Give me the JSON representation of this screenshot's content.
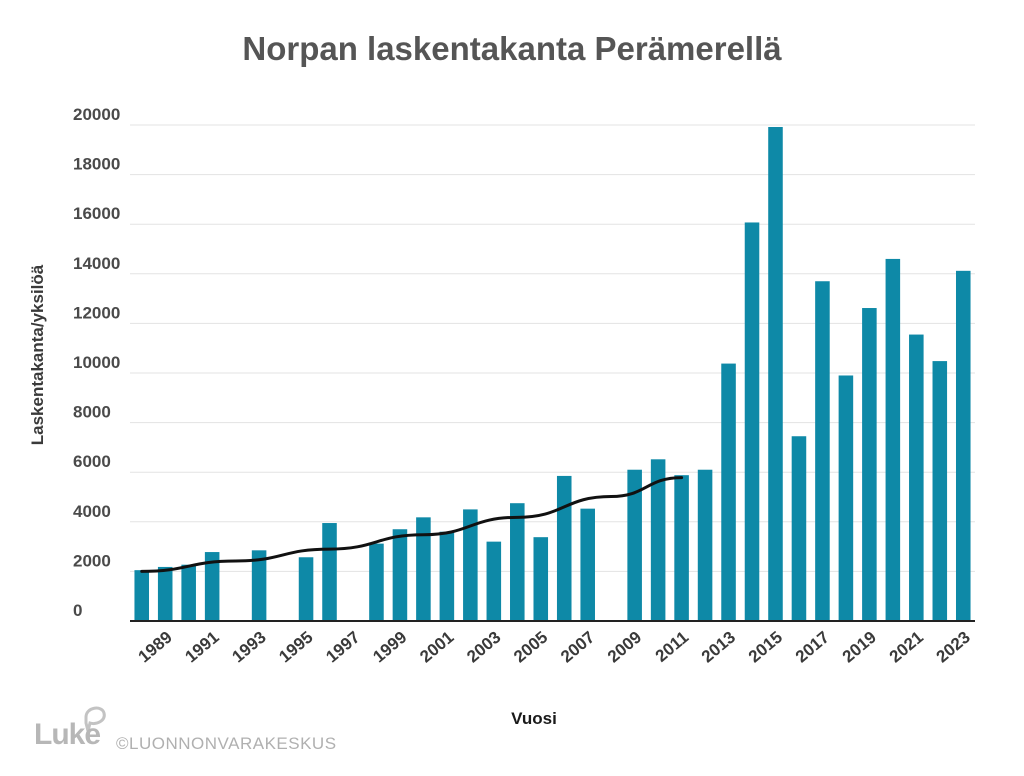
{
  "page": {
    "logo_text": "Luke",
    "credit": "©LUONNONVARAKESKUS"
  },
  "colors": {
    "bar": "#0e89a7",
    "trend": "#111111",
    "grid": "#e3e3e3",
    "axis": "#222222"
  },
  "chart_data": {
    "type": "bar",
    "title": "Norpan laskentakanta Perämerellä",
    "xlabel": "Vuosi",
    "ylabel": "Laskentakanta/yksilöä",
    "ylim": [
      0,
      20000
    ],
    "yticks": [
      0,
      2000,
      4000,
      6000,
      8000,
      10000,
      12000,
      14000,
      16000,
      18000,
      20000
    ],
    "grid": true,
    "categories": [
      1988,
      1989,
      1990,
      1991,
      1992,
      1993,
      1994,
      1995,
      1996,
      1997,
      1998,
      1999,
      2000,
      2001,
      2002,
      2003,
      2004,
      2005,
      2006,
      2007,
      2008,
      2009,
      2010,
      2011,
      2012,
      2013,
      2014,
      2015,
      2016,
      2017,
      2018,
      2019,
      2020,
      2021,
      2022,
      2023
    ],
    "xticks": [
      "1989",
      "1991",
      "1993",
      "1995",
      "1997",
      "1999",
      "2001",
      "2003",
      "2005",
      "2007",
      "2009",
      "2011",
      "2013",
      "2015",
      "2017",
      "2019",
      "2021",
      "2023"
    ],
    "series": [
      {
        "values": [
          2050,
          2180,
          2270,
          2780,
          null,
          2850,
          null,
          2570,
          3950,
          null,
          3120,
          3700,
          4180,
          3600,
          4500,
          3200,
          4750,
          3380,
          5850,
          4530,
          null,
          6100,
          6520,
          5880,
          6100,
          10380,
          16070,
          19920,
          7450,
          13700,
          9900,
          12620,
          14600,
          11550,
          10480,
          14120
        ]
      }
    ],
    "trend": {
      "type": "exponential",
      "x": [
        1988,
        1992,
        1996,
        2000,
        2004,
        2008,
        2011
      ],
      "y": [
        2000,
        2420,
        2900,
        3480,
        4180,
        5020,
        5780
      ]
    }
  }
}
